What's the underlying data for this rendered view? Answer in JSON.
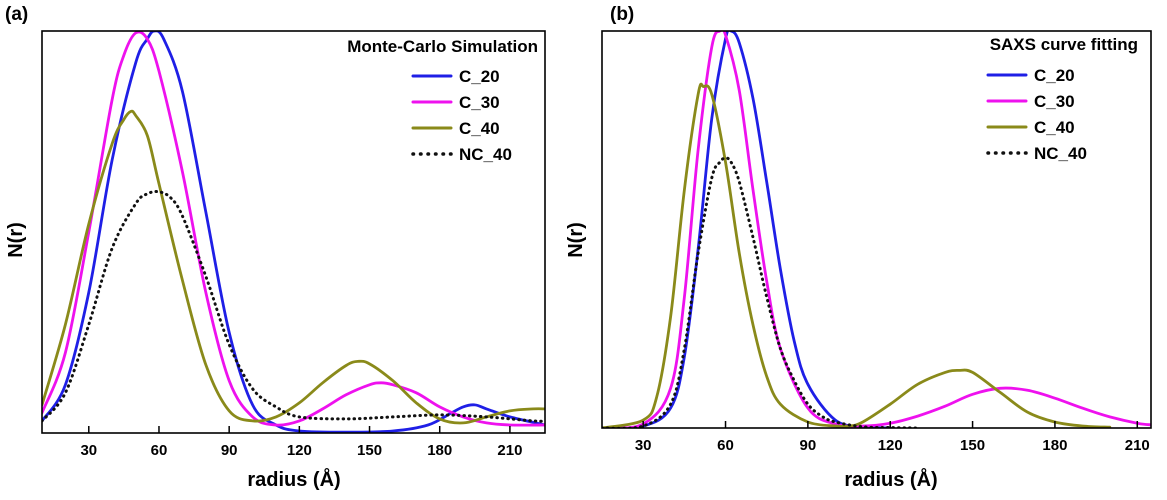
{
  "chart_data": [
    {
      "type": "line",
      "panel_label": "(a)",
      "title": "Monte-Carlo Simulation",
      "xlabel": "radius (Å)",
      "ylabel": "N(r)",
      "xlim": [
        10,
        225
      ],
      "ylim": [
        0,
        1.0
      ],
      "xticks": [
        30,
        60,
        90,
        120,
        150,
        180,
        210
      ],
      "yticks_shown": false,
      "grid": false,
      "legend_position": "top-right",
      "series": [
        {
          "name": "C_20",
          "color": "#1f1fe6",
          "style": "solid",
          "x": [
            10,
            20,
            30,
            40,
            50,
            55,
            58,
            62,
            70,
            80,
            90,
            100,
            110,
            120,
            140,
            160,
            175,
            185,
            190,
            195,
            200,
            210,
            225
          ],
          "y": [
            0.03,
            0.12,
            0.35,
            0.68,
            0.92,
            0.98,
            1.0,
            0.98,
            0.85,
            0.55,
            0.25,
            0.07,
            0.02,
            0.005,
            0.002,
            0.005,
            0.02,
            0.05,
            0.065,
            0.07,
            0.06,
            0.04,
            0.02
          ]
        },
        {
          "name": "C_30",
          "color": "#ee11ee",
          "style": "solid",
          "x": [
            10,
            20,
            30,
            40,
            45,
            50,
            55,
            60,
            70,
            80,
            90,
            100,
            110,
            120,
            130,
            140,
            150,
            155,
            160,
            170,
            180,
            190,
            200,
            210,
            225
          ],
          "y": [
            0.05,
            0.2,
            0.5,
            0.83,
            0.94,
            0.995,
            0.98,
            0.9,
            0.65,
            0.35,
            0.13,
            0.04,
            0.02,
            0.03,
            0.06,
            0.095,
            0.12,
            0.125,
            0.12,
            0.1,
            0.065,
            0.04,
            0.025,
            0.02,
            0.02
          ]
        },
        {
          "name": "C_40",
          "color": "#8a8a1a",
          "style": "solid",
          "x": [
            10,
            20,
            30,
            40,
            45,
            48,
            50,
            55,
            60,
            70,
            80,
            90,
            100,
            110,
            120,
            130,
            140,
            145,
            150,
            160,
            170,
            180,
            190,
            200,
            210,
            220,
            225
          ],
          "y": [
            0.07,
            0.27,
            0.52,
            0.72,
            0.78,
            0.8,
            0.79,
            0.74,
            0.62,
            0.38,
            0.17,
            0.055,
            0.03,
            0.04,
            0.075,
            0.125,
            0.168,
            0.178,
            0.172,
            0.13,
            0.075,
            0.035,
            0.025,
            0.04,
            0.055,
            0.06,
            0.06
          ]
        },
        {
          "name": "NC_40",
          "color": "#111111",
          "style": "dotted",
          "x": [
            10,
            20,
            30,
            40,
            50,
            55,
            60,
            65,
            70,
            80,
            90,
            100,
            110,
            120,
            140,
            160,
            180,
            200,
            220,
            225
          ],
          "y": [
            0.03,
            0.1,
            0.27,
            0.46,
            0.57,
            0.595,
            0.6,
            0.585,
            0.54,
            0.39,
            0.22,
            0.11,
            0.065,
            0.04,
            0.035,
            0.04,
            0.045,
            0.04,
            0.03,
            0.03
          ]
        }
      ]
    },
    {
      "type": "line",
      "panel_label": "(b)",
      "title": "SAXS curve fitting",
      "xlabel": "radius (Å)",
      "ylabel": "N(r)",
      "xlim": [
        15,
        215
      ],
      "ylim": [
        0,
        1.0
      ],
      "xticks": [
        30,
        60,
        90,
        120,
        150,
        180,
        210
      ],
      "yticks_shown": false,
      "grid": false,
      "legend_position": "top-right",
      "series": [
        {
          "name": "C_20",
          "color": "#1f1fe6",
          "style": "solid",
          "x": [
            15,
            30,
            40,
            45,
            50,
            55,
            60,
            62,
            65,
            70,
            75,
            80,
            85,
            90,
            100,
            110,
            120
          ],
          "y": [
            0,
            0.005,
            0.05,
            0.18,
            0.45,
            0.78,
            0.98,
            1.0,
            0.97,
            0.83,
            0.62,
            0.4,
            0.22,
            0.11,
            0.02,
            0.003,
            0
          ]
        },
        {
          "name": "C_30",
          "color": "#ee11ee",
          "style": "solid",
          "x": [
            15,
            30,
            40,
            45,
            50,
            55,
            58,
            60,
            65,
            70,
            75,
            80,
            90,
            100,
            110,
            120,
            130,
            140,
            150,
            160,
            170,
            180,
            190,
            200,
            210,
            215
          ],
          "y": [
            0,
            0.01,
            0.1,
            0.33,
            0.7,
            0.96,
            1.0,
            0.99,
            0.85,
            0.6,
            0.37,
            0.2,
            0.05,
            0.01,
            0.005,
            0.012,
            0.03,
            0.055,
            0.085,
            0.1,
            0.095,
            0.075,
            0.05,
            0.028,
            0.012,
            0.008
          ]
        },
        {
          "name": "C_40",
          "color": "#8a8a1a",
          "style": "solid",
          "x": [
            15,
            30,
            35,
            40,
            45,
            50,
            52,
            55,
            60,
            65,
            70,
            75,
            80,
            90,
            100,
            105,
            110,
            120,
            130,
            140,
            145,
            150,
            160,
            170,
            180,
            190,
            200
          ],
          "y": [
            0,
            0.02,
            0.08,
            0.28,
            0.6,
            0.84,
            0.86,
            0.84,
            0.67,
            0.44,
            0.26,
            0.13,
            0.06,
            0.015,
            0.005,
            0.005,
            0.015,
            0.06,
            0.11,
            0.14,
            0.145,
            0.14,
            0.09,
            0.04,
            0.015,
            0.005,
            0.002
          ]
        },
        {
          "name": "NC_40",
          "color": "#111111",
          "style": "dotted",
          "x": [
            15,
            30,
            40,
            45,
            50,
            55,
            58,
            60,
            62,
            65,
            70,
            75,
            80,
            85,
            90,
            95,
            100,
            110,
            120,
            130
          ],
          "y": [
            0,
            0.005,
            0.06,
            0.2,
            0.44,
            0.63,
            0.67,
            0.68,
            0.67,
            0.62,
            0.48,
            0.33,
            0.2,
            0.12,
            0.06,
            0.03,
            0.015,
            0.003,
            0.001,
            0
          ]
        }
      ]
    }
  ]
}
